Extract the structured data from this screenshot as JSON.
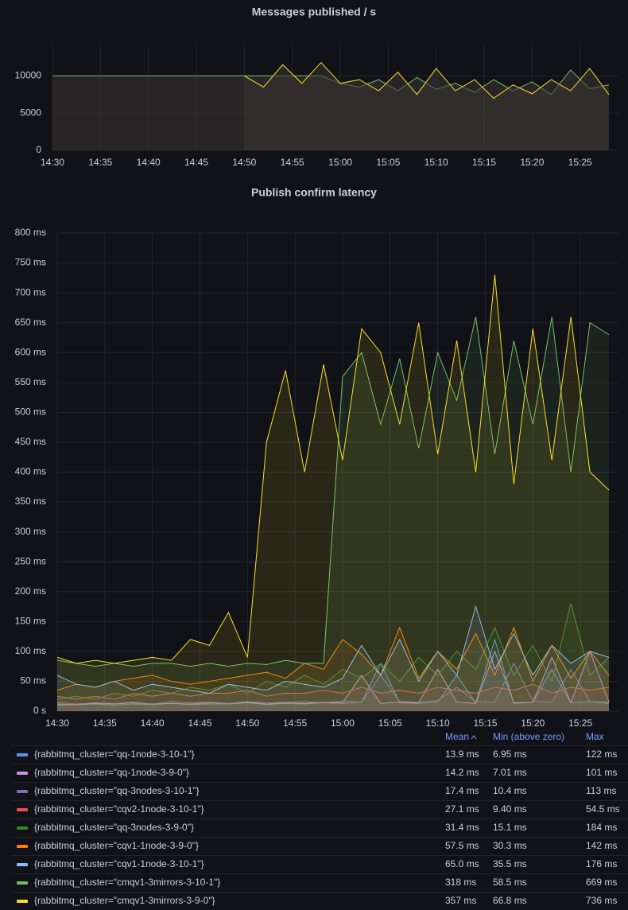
{
  "chart_data": [
    {
      "type": "line",
      "title": "Messages published / s",
      "legend": false,
      "grid": true,
      "fill": "#3a3433",
      "x": [
        "14:30",
        "14:32",
        "14:34",
        "14:36",
        "14:38",
        "14:40",
        "14:42",
        "14:44",
        "14:46",
        "14:48",
        "14:50",
        "14:52",
        "14:54",
        "14:56",
        "14:58",
        "15:00",
        "15:02",
        "15:04",
        "15:06",
        "15:08",
        "15:10",
        "15:12",
        "15:14",
        "15:16",
        "15:18",
        "15:20",
        "15:22",
        "15:24",
        "15:26",
        "15:28"
      ],
      "xlim": [
        "14:30",
        "15:29"
      ],
      "xticks": [
        "14:30",
        "14:35",
        "14:40",
        "14:45",
        "14:50",
        "14:55",
        "15:00",
        "15:05",
        "15:10",
        "15:15",
        "15:20",
        "15:25"
      ],
      "ylim": [
        0,
        14000
      ],
      "yticks": [
        0,
        5000,
        10000
      ],
      "series": [
        {
          "name": "cmqv1-3mirrors-3-10-1",
          "color": "#73bf69",
          "values": [
            10000,
            10000,
            10000,
            10000,
            10000,
            10000,
            10000,
            10000,
            10000,
            10000,
            10000,
            10000,
            10000,
            10000,
            10000,
            9000,
            8500,
            9500,
            8000,
            9800,
            8200,
            9000,
            7800,
            9500,
            8000,
            9200,
            7500,
            10800,
            8300,
            8800
          ]
        },
        {
          "name": "cmqv1-3mirrors-3-9-0",
          "color": "#fade2a",
          "values": [
            null,
            null,
            null,
            null,
            null,
            null,
            null,
            null,
            null,
            null,
            10000,
            8500,
            11500,
            9000,
            11800,
            9000,
            9500,
            8000,
            10500,
            7500,
            11000,
            8000,
            9500,
            7000,
            8800,
            7600,
            9500,
            8000,
            11000,
            7500
          ]
        }
      ]
    },
    {
      "type": "line",
      "title": "Publish confirm latency",
      "legend": "bottom",
      "grid": true,
      "x": [
        "14:30",
        "14:32",
        "14:34",
        "14:36",
        "14:38",
        "14:40",
        "14:42",
        "14:44",
        "14:46",
        "14:48",
        "14:50",
        "14:52",
        "14:54",
        "14:56",
        "14:58",
        "15:00",
        "15:02",
        "15:04",
        "15:06",
        "15:08",
        "15:10",
        "15:12",
        "15:14",
        "15:16",
        "15:18",
        "15:20",
        "15:22",
        "15:24",
        "15:26",
        "15:28"
      ],
      "xlim": [
        "14:30",
        "15:29"
      ],
      "xticks": [
        "14:30",
        "14:35",
        "14:40",
        "14:45",
        "14:50",
        "14:55",
        "15:00",
        "15:05",
        "15:10",
        "15:15",
        "15:20",
        "15:25"
      ],
      "ylim": [
        0,
        800
      ],
      "yticks": [
        {
          "value": 0,
          "label": "0 s"
        },
        {
          "value": 50,
          "label": "50 ms"
        },
        {
          "value": 100,
          "label": "100 ms"
        },
        {
          "value": 150,
          "label": "150 ms"
        },
        {
          "value": 200,
          "label": "200 ms"
        },
        {
          "value": 250,
          "label": "250 ms"
        },
        {
          "value": 300,
          "label": "300 ms"
        },
        {
          "value": 350,
          "label": "350 ms"
        },
        {
          "value": 400,
          "label": "400 ms"
        },
        {
          "value": 450,
          "label": "450 ms"
        },
        {
          "value": 500,
          "label": "500 ms"
        },
        {
          "value": 550,
          "label": "550 ms"
        },
        {
          "value": 600,
          "label": "600 ms"
        },
        {
          "value": 650,
          "label": "650 ms"
        },
        {
          "value": 700,
          "label": "700 ms"
        },
        {
          "value": 750,
          "label": "750 ms"
        },
        {
          "value": 800,
          "label": "800 ms"
        }
      ],
      "stat_columns": [
        "Mean",
        "Min (above zero)",
        "Max"
      ],
      "series": [
        {
          "name": "{rabbitmq_cluster=\"qq-1node-3-10-1\"}",
          "color": "#5794f2",
          "stats": [
            "13.9 ms",
            "6.95 ms",
            "122 ms"
          ],
          "values": [
            10,
            11,
            12,
            10,
            12,
            11,
            13,
            11,
            12,
            12,
            14,
            11,
            13,
            12,
            14,
            13,
            15,
            80,
            14,
            13,
            15,
            60,
            14,
            120,
            13,
            15,
            70,
            14,
            16,
            13
          ]
        },
        {
          "name": "{rabbitmq_cluster=\"qq-1node-3-9-0\"}",
          "color": "#ca95e5",
          "stats": [
            "14.2 ms",
            "7.01 ms",
            "101 ms"
          ],
          "values": [
            12,
            11,
            13,
            12,
            14,
            12,
            13,
            12,
            14,
            13,
            15,
            12,
            14,
            13,
            15,
            14,
            60,
            13,
            15,
            14,
            70,
            15,
            13,
            100,
            14,
            15,
            90,
            14,
            100,
            15
          ]
        },
        {
          "name": "{rabbitmq_cluster=\"qq-3nodes-3-10-1\"}",
          "color": "#806eb7",
          "stats": [
            "17.4 ms",
            "10.4 ms",
            "113 ms"
          ],
          "values": [
            15,
            12,
            14,
            13,
            15,
            12,
            16,
            14,
            15,
            13,
            16,
            14,
            15,
            16,
            14,
            17,
            15,
            60,
            16,
            15,
            18,
            40,
            16,
            15,
            80,
            17,
            15,
            70,
            16,
            15
          ]
        },
        {
          "name": "{rabbitmq_cluster=\"cqv2-1node-3-10-1\"}",
          "color": "#f2495c",
          "stats": [
            "27.1 ms",
            "9.40 ms",
            "54.5 ms"
          ],
          "values": [
            25,
            20,
            25,
            20,
            30,
            25,
            30,
            25,
            30,
            30,
            35,
            25,
            30,
            30,
            35,
            30,
            40,
            30,
            35,
            30,
            40,
            35,
            30,
            40,
            35,
            45,
            30,
            40,
            35,
            40
          ]
        },
        {
          "name": "{rabbitmq_cluster=\"qq-3nodes-3-9-0\"}",
          "color": "#37872d",
          "stats": [
            "31.4 ms",
            "15.1 ms",
            "184 ms"
          ],
          "values": [
            20,
            25,
            20,
            30,
            25,
            35,
            30,
            40,
            35,
            45,
            30,
            50,
            40,
            60,
            45,
            70,
            55,
            80,
            50,
            90,
            60,
            100,
            70,
            140,
            60,
            110,
            50,
            180,
            60,
            90
          ]
        },
        {
          "name": "{rabbitmq_cluster=\"cqv1-1node-3-9-0\"}",
          "color": "#ff780a",
          "stats": [
            "57.5 ms",
            "30.3 ms",
            "142 ms"
          ],
          "values": [
            35,
            45,
            40,
            50,
            55,
            60,
            50,
            45,
            50,
            55,
            60,
            65,
            55,
            80,
            70,
            120,
            95,
            60,
            140,
            55,
            100,
            70,
            130,
            60,
            140,
            50,
            110,
            55,
            100,
            60
          ]
        },
        {
          "name": "{rabbitmq_cluster=\"cqv1-1node-3-10-1\"}",
          "color": "#8ab8ff",
          "stats": [
            "65.0 ms",
            "35.5 ms",
            "176 ms"
          ],
          "values": [
            60,
            45,
            40,
            50,
            35,
            45,
            40,
            35,
            30,
            45,
            40,
            35,
            50,
            45,
            40,
            55,
            110,
            60,
            120,
            50,
            100,
            60,
            175,
            70,
            130,
            60,
            110,
            80,
            100,
            90
          ]
        },
        {
          "name": "{rabbitmq_cluster=\"cmqv1-3mirrors-3-10-1\"}",
          "color": "#73bf69",
          "stats": [
            "318 ms",
            "58.5 ms",
            "669 ms"
          ],
          "values": [
            85,
            80,
            75,
            80,
            75,
            80,
            80,
            75,
            80,
            75,
            80,
            78,
            85,
            80,
            80,
            560,
            600,
            480,
            590,
            440,
            600,
            520,
            660,
            430,
            620,
            480,
            660,
            400,
            650,
            630
          ]
        },
        {
          "name": "{rabbitmq_cluster=\"cmqv1-3mirrors-3-9-0\"}",
          "color": "#fade2a",
          "stats": [
            "357 ms",
            "66.8 ms",
            "736 ms"
          ],
          "values": [
            90,
            80,
            85,
            80,
            85,
            90,
            85,
            120,
            110,
            165,
            90,
            450,
            570,
            400,
            580,
            420,
            640,
            600,
            480,
            650,
            430,
            620,
            400,
            730,
            380,
            640,
            420,
            660,
            400,
            370
          ]
        }
      ]
    }
  ]
}
